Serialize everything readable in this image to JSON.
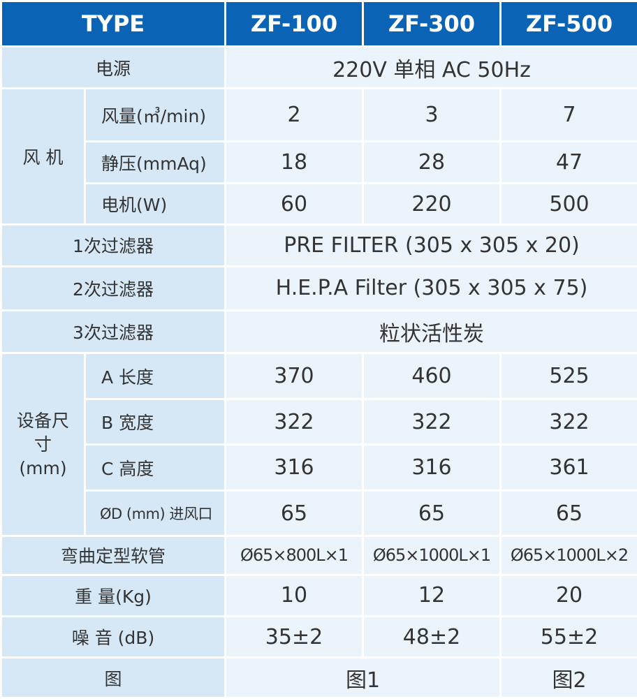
{
  "header": {
    "type": "TYPE",
    "models": [
      "ZF-100",
      "ZF-300",
      "ZF-500"
    ]
  },
  "rows": {
    "power": {
      "label": "电源",
      "value": "220V 单相 AC 50Hz"
    },
    "fan": {
      "group": "风 机",
      "airflow": {
        "label": "风量(㎥/min)",
        "values": [
          "2",
          "3",
          "7"
        ]
      },
      "static_pressure": {
        "label": "静压(mmAq)",
        "values": [
          "18",
          "28",
          "47"
        ]
      },
      "motor": {
        "label": "电机(W)",
        "values": [
          "60",
          "220",
          "500"
        ]
      }
    },
    "filter1": {
      "label": "1次过滤器",
      "value": "PRE FILTER (305 x 305 x 20)"
    },
    "filter2": {
      "label": "2次过滤器",
      "value": "H.E.P.A Filter (305 x 305 x 75)"
    },
    "filter3": {
      "label": "3次过滤器",
      "value": "粒状活性炭"
    },
    "dimensions": {
      "group_line1": "设备尺",
      "group_line2": "寸",
      "group_line3": "(mm)",
      "length": {
        "label": "A 长度",
        "values": [
          "370",
          "460",
          "525"
        ]
      },
      "width": {
        "label": "B 宽度",
        "values": [
          "322",
          "322",
          "322"
        ]
      },
      "height": {
        "label": "C 高度",
        "values": [
          "316",
          "316",
          "361"
        ]
      },
      "inlet": {
        "label": "ØD (mm) 进风口",
        "values": [
          "65",
          "65",
          "65"
        ]
      }
    },
    "hose": {
      "label": "弯曲定型软管",
      "values": [
        "Ø65×800L×1",
        "Ø65×1000L×1",
        "Ø65×1000L×2"
      ]
    },
    "weight": {
      "label": "重 量(Kg)",
      "values": [
        "10",
        "12",
        "20"
      ]
    },
    "noise": {
      "label": "噪 音 (dB)",
      "values": [
        "35±2",
        "48±2",
        "55±2"
      ]
    },
    "figure": {
      "label": "图",
      "values": [
        "图1",
        "图2"
      ]
    }
  },
  "colors": {
    "header_bg": "#0b63b5",
    "label_bg": "#d6e8f6",
    "value_bg": "#ecf4fb",
    "text": "#333333"
  }
}
